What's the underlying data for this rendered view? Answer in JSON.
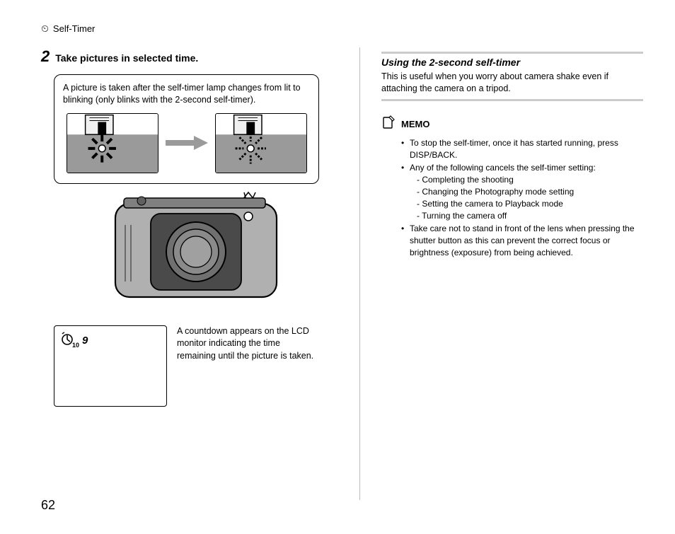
{
  "header": {
    "icon": "⏲",
    "label": "Self-Timer"
  },
  "step": {
    "number": "2",
    "title": "Take pictures in selected time."
  },
  "callout": {
    "text": "A picture is taken after the self-timer lamp changes from lit to blinking (only blinks with the 2-second self-timer)."
  },
  "lcd": {
    "icon_text": "10",
    "caption": "A countdown appears on the LCD monitor indicating the time remaining until the picture is taken."
  },
  "right": {
    "subhead": "Using the 2-second self-timer",
    "subtext": "This is useful when you worry about camera shake even if attaching the camera on a tripod."
  },
  "memo": {
    "title": "MEMO",
    "items": [
      {
        "text": "To stop the self-timer, once it has started running, press DISP/BACK."
      },
      {
        "text": "Any of the following cancels the self-timer setting:",
        "sub": [
          "Completing the shooting",
          "Changing the Photography mode setting",
          "Setting the camera to Playback mode",
          "Turning the camera off"
        ]
      },
      {
        "text": "Take care not to stand in front of the lens when pressing the shutter button as this can prevent the correct focus or brightness (exposure) from being achieved."
      }
    ]
  },
  "colors": {
    "bar": "#cccccc",
    "arrow": "#9a9a9a",
    "camera_body": "#b0b0b0",
    "camera_dark": "#4a4a4a"
  },
  "page": "62"
}
